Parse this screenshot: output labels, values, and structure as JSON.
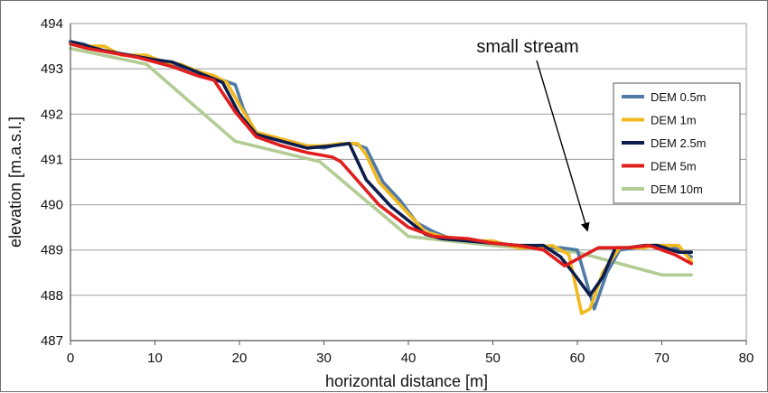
{
  "chart_data": {
    "type": "line",
    "title": "",
    "xlabel": "horizontal distance [m]",
    "ylabel": "elevation [m.a.s.l.]",
    "xlim": [
      0,
      80
    ],
    "ylim": [
      487,
      494
    ],
    "xticks": [
      0,
      10,
      20,
      30,
      40,
      50,
      60,
      70,
      80
    ],
    "yticks": [
      487,
      488,
      489,
      490,
      491,
      492,
      493,
      494
    ],
    "grid": "horizontal",
    "legend": "right",
    "annotation": {
      "text": "small stream",
      "target": [
        61.5,
        489.2
      ]
    },
    "series": [
      {
        "name": "DEM 0.5m",
        "color": "#4f7ba6",
        "points": [
          [
            0,
            493.6
          ],
          [
            1.5,
            493.55
          ],
          [
            3,
            493.45
          ],
          [
            5,
            493.35
          ],
          [
            7,
            493.3
          ],
          [
            9,
            493.25
          ],
          [
            11,
            493.15
          ],
          [
            13,
            493.05
          ],
          [
            15,
            492.95
          ],
          [
            17,
            492.8
          ],
          [
            18,
            492.75
          ],
          [
            19.5,
            492.65
          ],
          [
            20.5,
            492.1
          ],
          [
            22,
            491.55
          ],
          [
            24,
            491.45
          ],
          [
            26,
            491.4
          ],
          [
            28,
            491.3
          ],
          [
            30,
            491.25
          ],
          [
            32,
            491.35
          ],
          [
            33.5,
            491.35
          ],
          [
            35,
            491.25
          ],
          [
            37,
            490.5
          ],
          [
            39,
            490.1
          ],
          [
            41,
            489.6
          ],
          [
            43,
            489.4
          ],
          [
            45,
            489.25
          ],
          [
            48,
            489.2
          ],
          [
            51,
            489.15
          ],
          [
            53.5,
            489.05
          ],
          [
            56,
            489.05
          ],
          [
            58,
            489.05
          ],
          [
            60,
            489.0
          ],
          [
            62,
            487.7
          ],
          [
            63.5,
            488.5
          ],
          [
            65,
            489.0
          ],
          [
            67,
            489.05
          ],
          [
            69,
            489.1
          ],
          [
            71,
            489.1
          ],
          [
            73.5,
            488.85
          ]
        ]
      },
      {
        "name": "DEM 1m",
        "color": "#f2b91e",
        "points": [
          [
            0,
            493.55
          ],
          [
            1.5,
            493.5
          ],
          [
            4,
            493.5
          ],
          [
            6,
            493.3
          ],
          [
            9,
            493.3
          ],
          [
            11,
            493.15
          ],
          [
            13,
            493.1
          ],
          [
            15,
            492.95
          ],
          [
            17,
            492.85
          ],
          [
            18.5,
            492.7
          ],
          [
            20,
            492.2
          ],
          [
            22,
            491.6
          ],
          [
            24,
            491.5
          ],
          [
            26,
            491.4
          ],
          [
            28,
            491.3
          ],
          [
            30,
            491.3
          ],
          [
            32,
            491.35
          ],
          [
            34,
            491.35
          ],
          [
            35,
            491.1
          ],
          [
            36.5,
            490.5
          ],
          [
            38.5,
            490.1
          ],
          [
            40,
            489.8
          ],
          [
            42,
            489.4
          ],
          [
            44,
            489.3
          ],
          [
            47,
            489.2
          ],
          [
            50,
            489.2
          ],
          [
            53,
            489.05
          ],
          [
            55,
            489.05
          ],
          [
            57,
            489.1
          ],
          [
            59,
            488.9
          ],
          [
            60.5,
            487.6
          ],
          [
            61.5,
            487.7
          ],
          [
            63,
            488.5
          ],
          [
            65,
            489.05
          ],
          [
            68,
            489.05
          ],
          [
            69,
            489.1
          ],
          [
            72,
            489.1
          ],
          [
            73.5,
            488.75
          ]
        ]
      },
      {
        "name": "DEM 2.5m",
        "color": "#0c1d4d",
        "points": [
          [
            0,
            493.6
          ],
          [
            2,
            493.5
          ],
          [
            4,
            493.4
          ],
          [
            7,
            493.3
          ],
          [
            10,
            493.2
          ],
          [
            12,
            493.15
          ],
          [
            14,
            493.0
          ],
          [
            16,
            492.85
          ],
          [
            18,
            492.7
          ],
          [
            20,
            492.0
          ],
          [
            22,
            491.55
          ],
          [
            25,
            491.4
          ],
          [
            28,
            491.25
          ],
          [
            31,
            491.3
          ],
          [
            33,
            491.35
          ],
          [
            35,
            490.55
          ],
          [
            38,
            489.95
          ],
          [
            40,
            489.65
          ],
          [
            42,
            489.35
          ],
          [
            44,
            489.25
          ],
          [
            47,
            489.2
          ],
          [
            50,
            489.15
          ],
          [
            53,
            489.1
          ],
          [
            56,
            489.1
          ],
          [
            58,
            488.85
          ],
          [
            59.5,
            488.5
          ],
          [
            61.5,
            488.0
          ],
          [
            63,
            488.4
          ],
          [
            64.5,
            489.05
          ],
          [
            66,
            489.05
          ],
          [
            68,
            489.1
          ],
          [
            69.5,
            489.1
          ],
          [
            72,
            488.95
          ],
          [
            73.5,
            488.95
          ]
        ]
      },
      {
        "name": "DEM 5m",
        "color": "#e01e1e",
        "points": [
          [
            0,
            493.55
          ],
          [
            2,
            493.45
          ],
          [
            5,
            493.35
          ],
          [
            8,
            493.25
          ],
          [
            12,
            493.05
          ],
          [
            15,
            492.85
          ],
          [
            17,
            492.75
          ],
          [
            19.5,
            492.05
          ],
          [
            22,
            491.5
          ],
          [
            25,
            491.3
          ],
          [
            28,
            491.15
          ],
          [
            31,
            491.05
          ],
          [
            32,
            490.95
          ],
          [
            36.5,
            490.0
          ],
          [
            40,
            489.5
          ],
          [
            43,
            489.3
          ],
          [
            47,
            489.25
          ],
          [
            50,
            489.15
          ],
          [
            53,
            489.1
          ],
          [
            56,
            489.0
          ],
          [
            58.5,
            488.65
          ],
          [
            59.5,
            488.75
          ],
          [
            61.5,
            488.95
          ],
          [
            62.5,
            489.05
          ],
          [
            66,
            489.05
          ],
          [
            68.5,
            489.1
          ],
          [
            71.5,
            488.9
          ],
          [
            73.5,
            488.7
          ]
        ]
      },
      {
        "name": "DEM 10m",
        "color": "#b3cc94",
        "points": [
          [
            0,
            493.45
          ],
          [
            9,
            493.1
          ],
          [
            19.5,
            491.4
          ],
          [
            29.5,
            490.95
          ],
          [
            40,
            489.3
          ],
          [
            50,
            489.1
          ],
          [
            60,
            488.95
          ],
          [
            70,
            488.45
          ],
          [
            73.5,
            488.45
          ]
        ]
      }
    ]
  }
}
